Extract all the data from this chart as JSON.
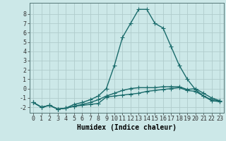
{
  "xlabel": "Humidex (Indice chaleur)",
  "background_color": "#cce8e8",
  "line_color": "#1a6b6b",
  "x_values": [
    0,
    1,
    2,
    3,
    4,
    5,
    6,
    7,
    8,
    9,
    10,
    11,
    12,
    13,
    14,
    15,
    16,
    17,
    18,
    19,
    20,
    21,
    22,
    23
  ],
  "series1": [
    -1.5,
    -2.0,
    -1.8,
    -2.2,
    -2.1,
    -1.9,
    -1.8,
    -1.7,
    -1.6,
    -0.9,
    -0.8,
    -0.7,
    -0.6,
    -0.5,
    -0.3,
    -0.2,
    -0.1,
    0.0,
    0.1,
    -0.2,
    -0.3,
    -0.8,
    -1.2,
    -1.3
  ],
  "series2": [
    -1.5,
    -2.0,
    -1.8,
    -2.2,
    -2.1,
    -1.9,
    -1.7,
    -1.5,
    -1.2,
    -0.8,
    -0.5,
    -0.2,
    0.0,
    0.1,
    0.1,
    0.1,
    0.2,
    0.2,
    0.2,
    -0.1,
    0.0,
    -0.5,
    -1.0,
    -1.3
  ],
  "series3": [
    -1.5,
    -2.0,
    -1.8,
    -2.2,
    -2.1,
    -1.7,
    -1.5,
    -1.2,
    -0.8,
    0.0,
    2.5,
    5.5,
    7.0,
    8.5,
    8.5,
    7.0,
    6.5,
    4.5,
    2.5,
    1.0,
    -0.1,
    -0.8,
    -1.3,
    -1.4
  ],
  "ylim": [
    -2.6,
    9.2
  ],
  "xlim": [
    -0.5,
    23.5
  ],
  "yticks": [
    -2,
    -1,
    0,
    1,
    2,
    3,
    4,
    5,
    6,
    7,
    8
  ],
  "xticks": [
    0,
    1,
    2,
    3,
    4,
    5,
    6,
    7,
    8,
    9,
    10,
    11,
    12,
    13,
    14,
    15,
    16,
    17,
    18,
    19,
    20,
    21,
    22,
    23
  ],
  "grid_color": "#b0cccc",
  "marker": "+",
  "markersize": 4,
  "linewidth": 1.0,
  "xlabel_fontsize": 7,
  "tick_fontsize": 6
}
